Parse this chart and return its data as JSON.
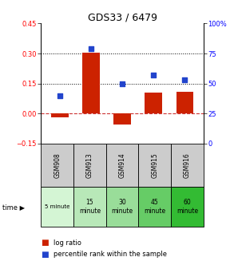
{
  "title": "GDS33 / 6479",
  "samples": [
    "GSM908",
    "GSM913",
    "GSM914",
    "GSM915",
    "GSM916"
  ],
  "time_labels": [
    "5 minute",
    "15\nminute",
    "30\nminute",
    "45\nminute",
    "60\nminute"
  ],
  "time_colors": [
    "#d4f5d4",
    "#b8e8b8",
    "#99dd99",
    "#66cc66",
    "#33bb33"
  ],
  "log_ratios": [
    -0.02,
    0.305,
    -0.055,
    0.105,
    0.11
  ],
  "percentile_ranks": [
    40,
    79,
    50,
    57,
    53
  ],
  "left_ylim": [
    -0.15,
    0.45
  ],
  "right_ylim": [
    0,
    100
  ],
  "left_yticks": [
    -0.15,
    0.0,
    0.15,
    0.3,
    0.45
  ],
  "right_yticks": [
    0,
    25,
    50,
    75,
    100
  ],
  "hlines_dotted": [
    0.15,
    0.3
  ],
  "hline_dashed": 0.0,
  "bar_color": "#cc2200",
  "dot_color": "#2244cc",
  "zero_line_color": "#cc3333",
  "bg_color": "#ffffff",
  "sample_bg": "#cccccc",
  "legend_red": "log ratio",
  "legend_blue": "percentile rank within the sample",
  "title_fontsize": 9,
  "tick_fontsize": 6,
  "label_fontsize": 5.5,
  "legend_fontsize": 6
}
